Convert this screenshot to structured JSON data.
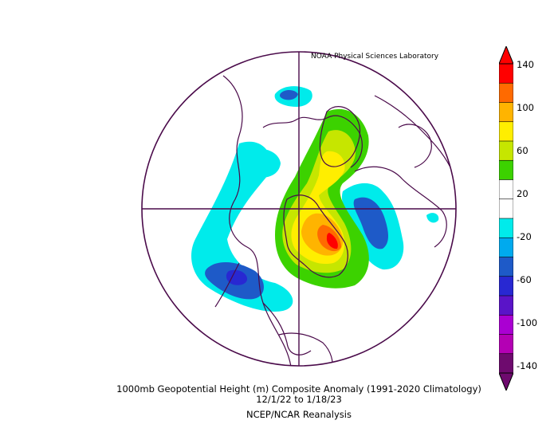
{
  "credit": "NOAA Physical Sciences Laboratory",
  "caption": {
    "line1": "1000mb Geopotential Height (m) Composite Anomaly (1991-2020 Climatology)",
    "line2": "12/1/22  to 1/18/23",
    "line3": "NCEP/NCAR Reanalysis"
  },
  "colorbar": {
    "labels": [
      "140",
      "100",
      "60",
      "20",
      "-20",
      "-60",
      "-100",
      "-140"
    ],
    "colors": [
      "#ff0000",
      "#ff6a00",
      "#ffb400",
      "#ffee00",
      "#c6e600",
      "#3cd200",
      "#ffffff",
      "#ffffff",
      "#00ebeb",
      "#00aaee",
      "#1e5ac8",
      "#2828d2",
      "#5a14c8",
      "#aa00d2",
      "#b400b4",
      "#6e0a6e"
    ]
  },
  "map": {
    "projection": "north polar stereographic",
    "anomaly_centers": [
      {
        "name": "north-atlantic-greenland-high",
        "max_approx": 140,
        "color": "#ff1a00"
      },
      {
        "name": "north-pacific-low",
        "min_approx": -60,
        "color": "#2828d2"
      },
      {
        "name": "north-america-low",
        "min_approx": -40,
        "color": "#1e5ac8"
      },
      {
        "name": "siberia-low",
        "min_approx": -40,
        "color": "#1e5ac8"
      }
    ]
  }
}
